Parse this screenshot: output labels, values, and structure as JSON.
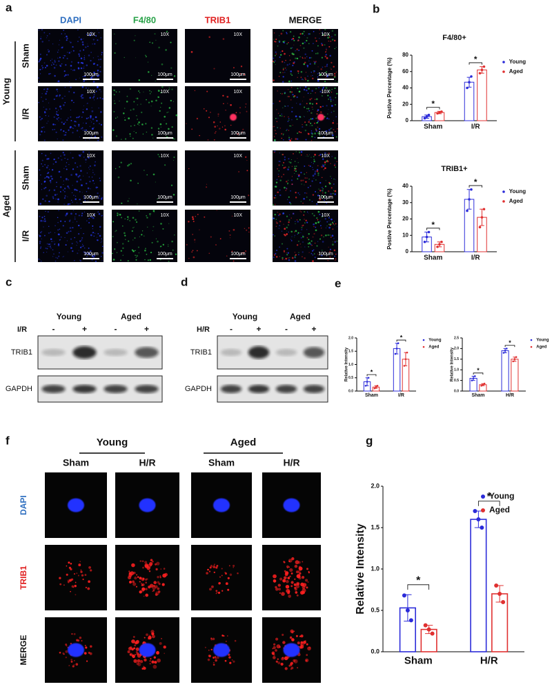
{
  "figure": {
    "panel_labels": [
      "a",
      "b",
      "c",
      "d",
      "e",
      "f",
      "g"
    ],
    "a": {
      "columns": [
        "DAPI",
        "F4/80",
        "TRIB1",
        "MERGE"
      ],
      "groups": [
        "Young",
        "Aged"
      ],
      "rows": [
        "Sham",
        "I/R"
      ],
      "magnification": "10X",
      "scale_bar": "100μm"
    },
    "c": {
      "groups": [
        "Young",
        "Aged"
      ],
      "condition": "I/R",
      "lanes": [
        "-",
        "+",
        "-",
        "+"
      ],
      "proteins": [
        "TRIB1",
        "GAPDH"
      ]
    },
    "d": {
      "groups": [
        "Young",
        "Aged"
      ],
      "condition": "H/R",
      "lanes": [
        "-",
        "+",
        "-",
        "+"
      ],
      "proteins": [
        "TRIB1",
        "GAPDH"
      ]
    },
    "f": {
      "groups": [
        "Young",
        "Aged"
      ],
      "conditions": [
        "Sham",
        "H/R"
      ],
      "rows": [
        "DAPI",
        "TRIB1",
        "MERGE"
      ]
    }
  },
  "chart_data": [
    {
      "type": "bar",
      "title": "F4/80+",
      "ylabel": "Postive Percentage (%)",
      "categories": [
        "Sham",
        "I/R"
      ],
      "ylim": [
        0,
        80
      ],
      "yticks": [
        0,
        20,
        40,
        60,
        80
      ],
      "legend": "upper right",
      "significance": [
        "*",
        "*"
      ],
      "series": [
        {
          "name": "Young",
          "color": "#2b2bd9",
          "values": [
            5,
            47
          ],
          "errors": [
            2,
            6
          ],
          "points": [
            [
              3,
              5,
              7
            ],
            [
              40,
              47,
              54
            ]
          ]
        },
        {
          "name": "Aged",
          "color": "#e03030",
          "values": [
            10,
            62
          ],
          "errors": [
            1.5,
            4
          ],
          "points": [
            [
              9,
              10,
              11
            ],
            [
              58,
              62,
              66
            ]
          ]
        }
      ]
    },
    {
      "type": "bar",
      "title": "TRIB1+",
      "ylabel": "Postive Percentage (%)",
      "categories": [
        "Sham",
        "I/R"
      ],
      "ylim": [
        0,
        40
      ],
      "yticks": [
        0,
        10,
        20,
        30,
        40
      ],
      "legend": "upper right",
      "significance": [
        "*",
        "*"
      ],
      "series": [
        {
          "name": "Young",
          "color": "#2b2bd9",
          "values": [
            9,
            32
          ],
          "errors": [
            3,
            6
          ],
          "points": [
            [
              6,
              9,
              12
            ],
            [
              25,
              32,
              38
            ]
          ]
        },
        {
          "name": "Aged",
          "color": "#e03030",
          "values": [
            4.5,
            21
          ],
          "errors": [
            1.5,
            5
          ],
          "points": [
            [
              3,
              4.5,
              6
            ],
            [
              15,
              21,
              26
            ]
          ]
        }
      ]
    },
    {
      "type": "bar",
      "ylabel": "Relative Intensity",
      "categories": [
        "Sham",
        "I/R"
      ],
      "ylim": [
        0,
        2
      ],
      "yticks": [
        {
          "value": 0,
          "label": "0.0"
        },
        {
          "value": 0.5,
          "label": "0.5"
        },
        {
          "value": 1,
          "label": "1.0"
        },
        {
          "value": 1.5,
          "label": "1.5"
        },
        {
          "value": 2,
          "label": "2.0"
        }
      ],
      "legend": "upper right",
      "significance": [
        "*",
        "*"
      ],
      "series": [
        {
          "name": "Young",
          "color": "#2b2bd9",
          "values": [
            0.35,
            1.6
          ],
          "errors": [
            0.15,
            0.2
          ],
          "points": [
            [
              0.2,
              0.35,
              0.5
            ],
            [
              1.4,
              1.6,
              1.8
            ]
          ]
        },
        {
          "name": "Aged",
          "color": "#e03030",
          "values": [
            0.15,
            1.2
          ],
          "errors": [
            0.05,
            0.25
          ],
          "points": [
            [
              0.1,
              0.15,
              0.2
            ],
            [
              0.95,
              1.2,
              1.45
            ]
          ]
        }
      ]
    },
    {
      "type": "bar",
      "ylabel": "Relative Intensity",
      "categories": [
        "Sham",
        "H/R"
      ],
      "ylim": [
        0,
        2.5
      ],
      "yticks": [
        {
          "value": 0,
          "label": "0.0"
        },
        {
          "value": 0.5,
          "label": "0.5"
        },
        {
          "value": 1,
          "label": "1.0"
        },
        {
          "value": 1.5,
          "label": "1.5"
        },
        {
          "value": 2,
          "label": "2.0"
        },
        {
          "value": 2.5,
          "label": "2.5"
        }
      ],
      "legend": "upper right",
      "significance": [
        "*",
        "*"
      ],
      "series": [
        {
          "name": "Young",
          "color": "#2b2bd9",
          "values": [
            0.6,
            1.9
          ],
          "errors": [
            0.1,
            0.1
          ],
          "points": [
            [
              0.5,
              0.6,
              0.7
            ],
            [
              1.8,
              1.9,
              2
            ]
          ]
        },
        {
          "name": "Aged",
          "color": "#e03030",
          "values": [
            0.3,
            1.5
          ],
          "errors": [
            0.05,
            0.1
          ],
          "points": [
            [
              0.25,
              0.3,
              0.35
            ],
            [
              1.4,
              1.5,
              1.6
            ]
          ]
        }
      ]
    },
    {
      "type": "bar",
      "ylabel": "Relative Intensity",
      "categories": [
        "Sham",
        "H/R"
      ],
      "ylim": [
        0,
        2
      ],
      "yticks": [
        {
          "value": 0,
          "label": "0.0"
        },
        {
          "value": 0.5,
          "label": "0.5"
        },
        {
          "value": 1,
          "label": "1.0"
        },
        {
          "value": 1.5,
          "label": "1.5"
        },
        {
          "value": 2,
          "label": "2.0"
        }
      ],
      "legend": "upper right",
      "significance": [
        "*",
        "*"
      ],
      "series": [
        {
          "name": "Young",
          "color": "#2b2bd9",
          "values": [
            0.53,
            1.6
          ],
          "errors": [
            0.16,
            0.1
          ],
          "points": [
            [
              0.68,
              0.5,
              0.38
            ],
            [
              1.7,
              1.6,
              1.5
            ]
          ]
        },
        {
          "name": "Aged",
          "color": "#e03030",
          "values": [
            0.27,
            0.7
          ],
          "errors": [
            0.05,
            0.1
          ],
          "points": [
            [
              0.32,
              0.27,
              0.22
            ],
            [
              0.8,
              0.7,
              0.6
            ]
          ]
        }
      ]
    }
  ]
}
